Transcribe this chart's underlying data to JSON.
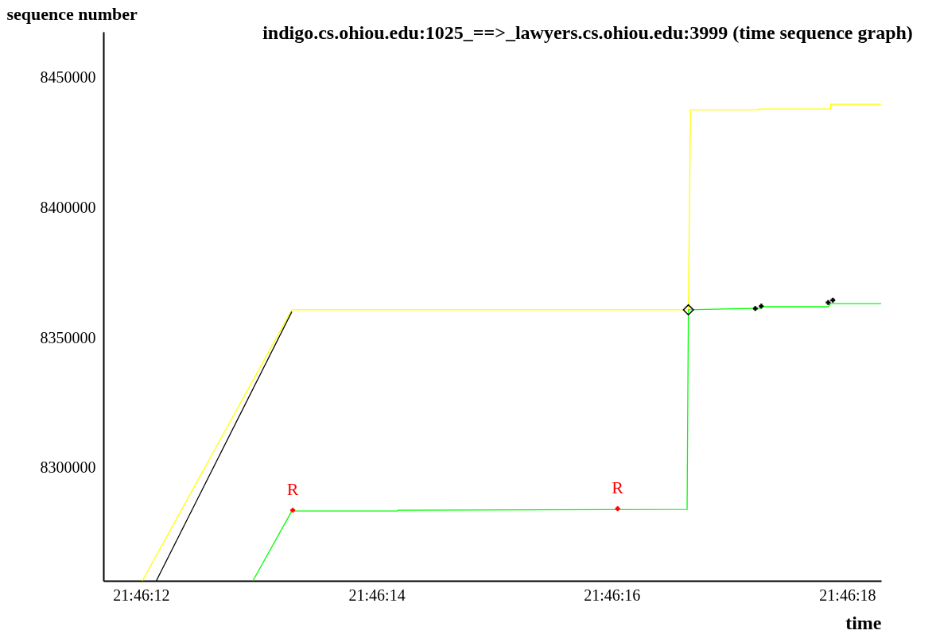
{
  "chart_data": {
    "type": "line",
    "title": "indigo.cs.ohiou.edu:1025_==>_lawyers.cs.ohiou.edu:3999 (time sequence graph)",
    "xlabel": "time",
    "ylabel": "sequence number",
    "xlim": [
      21.769911,
      21.771747
    ],
    "xticks": [
      {
        "value": 21.77,
        "label": "21:46:12"
      },
      {
        "value": 21.770556,
        "label": "21:46:14"
      },
      {
        "value": 21.771111,
        "label": "21:46:16"
      },
      {
        "value": 21.771667,
        "label": "21:46:18"
      }
    ],
    "ylim": [
      8256700,
      8467400
    ],
    "yticks": [
      8300000,
      8350000,
      8400000,
      8450000
    ],
    "grid": false,
    "marker": "none",
    "line_style": "solid",
    "series": [
      {
        "color": "#ffff00",
        "x": [
          21.770003,
          21.770356,
          21.771292,
          21.771297,
          21.771458,
          21.771458,
          21.771628,
          21.771628,
          21.771747
        ],
        "values": [
          8256700,
          8360700,
          8360700,
          8437500,
          8437500,
          8437800,
          8437800,
          8439600,
          8439600
        ]
      },
      {
        "color": "#00ff00",
        "x": [
          21.770264,
          21.770356,
          21.770606,
          21.770606,
          21.771289,
          21.771292,
          21.771464,
          21.771464,
          21.771622,
          21.771628,
          21.771747
        ],
        "values": [
          8256700,
          8283500,
          8283500,
          8283800,
          8284100,
          8360700,
          8361300,
          8361900,
          8361900,
          8363100,
          8363100
        ]
      },
      {
        "color": "#000000",
        "x": [
          21.770036,
          21.770356
        ],
        "values": [
          8256700,
          8360000
        ]
      },
      {
        "type": "scatter",
        "marker": "cross",
        "color": "#000000",
        "x": [
          21.77145,
          21.771464,
          21.771622,
          21.771633
        ],
        "values": [
          8361200,
          8362100,
          8363500,
          8364400
        ]
      },
      {
        "type": "scatter",
        "marker": "cross",
        "color": "#ff0000",
        "x": [
          21.770358,
          21.771125
        ],
        "values": [
          8283800,
          8284400
        ]
      },
      {
        "type": "scatter",
        "marker": "diamond",
        "color": "#000000",
        "x": [
          21.771292
        ],
        "values": [
          8360700
        ]
      }
    ],
    "annotations": [
      {
        "text": "R",
        "x": 21.770358,
        "y": 8283800
      },
      {
        "text": "R",
        "x": 21.771125,
        "y": 8284400
      }
    ]
  }
}
